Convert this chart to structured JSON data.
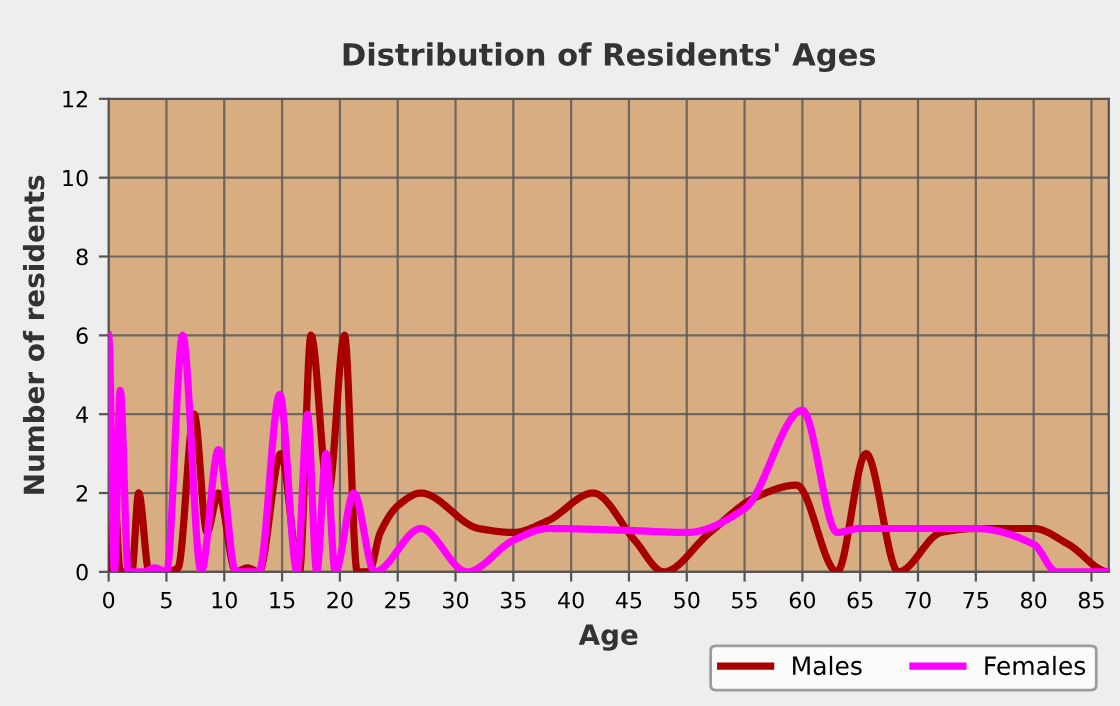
{
  "chart_data": {
    "type": "line",
    "title": "Distribution of Residents' Ages",
    "xlabel": "Age",
    "ylabel": "Number of residents",
    "xlim": [
      0,
      86.5
    ],
    "xticks": [
      0,
      5,
      10,
      15,
      20,
      25,
      30,
      35,
      40,
      45,
      50,
      55,
      60,
      65,
      70,
      75,
      80,
      85
    ],
    "ylim": [
      0,
      12
    ],
    "yticks": [
      0,
      2,
      4,
      6,
      8,
      10,
      12
    ],
    "grid": true,
    "legend": "bottom right",
    "line_style": "solid",
    "marker": "none",
    "series": [
      {
        "name": "Males",
        "color": "#a80000",
        "x": [
          0,
          0.5,
          1,
          2,
          2.6,
          3.5,
          5,
          6,
          7.4,
          8.5,
          9.5,
          11,
          12,
          13,
          14.9,
          16.5,
          17.5,
          19,
          20.4,
          21.5,
          22.5,
          23.5,
          25.1,
          27,
          32,
          35,
          38,
          41.9,
          45.5,
          48,
          52,
          56,
          59.5,
          63,
          65.5,
          68.3,
          72,
          75,
          80,
          83,
          86.5
        ],
        "values": [
          0,
          2,
          0,
          0,
          2,
          0,
          0,
          0.1,
          4,
          1,
          2,
          0,
          0.1,
          0,
          3,
          0,
          6,
          2,
          6,
          0,
          0,
          1,
          1.7,
          2,
          1.1,
          1,
          1.3,
          2,
          0.8,
          0,
          1,
          1.9,
          2.2,
          0,
          3,
          0,
          1,
          1.1,
          1.1,
          0.7,
          0
        ]
      },
      {
        "name": "Females",
        "color": "#ff00ff",
        "x": [
          0,
          0.5,
          1,
          1.7,
          3,
          4,
          5,
          6.4,
          8,
          9.5,
          11,
          13,
          14.8,
          16.3,
          17.2,
          18,
          18.8,
          19.6,
          21.2,
          23,
          27,
          31,
          35,
          38,
          45,
          50,
          55,
          60,
          63,
          65,
          75,
          80,
          82,
          86.5
        ],
        "values": [
          6,
          0,
          4.6,
          0,
          0,
          0.1,
          0,
          6,
          0,
          3.1,
          0,
          0,
          4.5,
          0,
          4,
          0,
          3,
          0,
          2,
          0,
          1.1,
          0,
          0.8,
          1.1,
          1.05,
          1,
          1.6,
          4.1,
          1,
          1.1,
          1.1,
          0.7,
          0,
          0
        ]
      }
    ]
  }
}
